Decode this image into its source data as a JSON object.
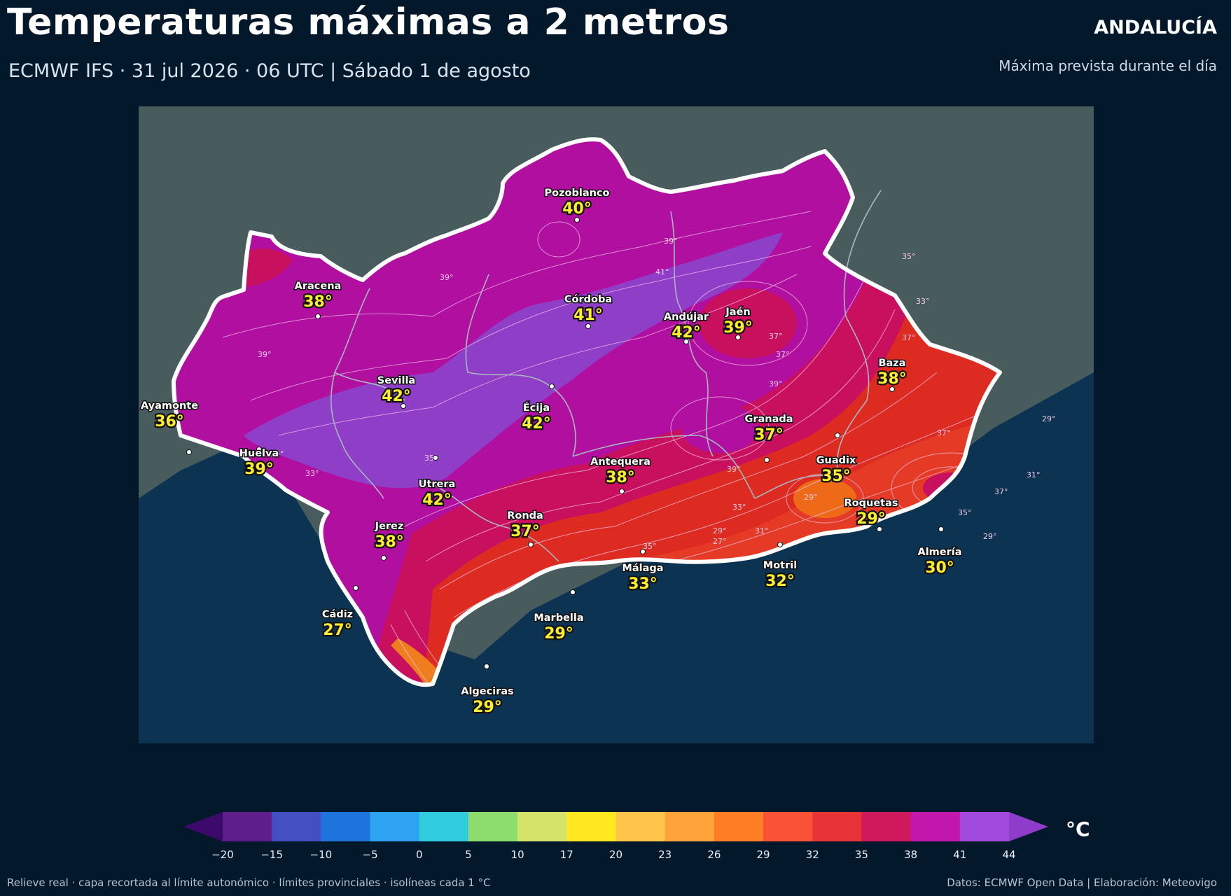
{
  "header": {
    "title": "Temperaturas máximas a 2 metros",
    "subtitle": "ECMWF IFS · 31 jul 2026 · 06 UTC  |  Sábado 1 de agosto",
    "region": "ANDALUCÍA",
    "region_sub": "Máxima prevista durante el día"
  },
  "map": {
    "land_color": "#485c5e",
    "sea_color": "#0d3352",
    "cities": [
      {
        "name": "Pozoblanco",
        "temp": "40°",
        "color": "#b50fa2"
      },
      {
        "name": "Aracena",
        "temp": "38°",
        "color": "#c8105f"
      },
      {
        "name": "Córdoba",
        "temp": "41°",
        "color": "#a817ad"
      },
      {
        "name": "Andújar",
        "temp": "42°",
        "color": "#8f3ec8"
      },
      {
        "name": "Jaén",
        "temp": "39°",
        "color": "#b10fa0"
      },
      {
        "name": "Baza",
        "temp": "38°",
        "color": "#c8105f"
      },
      {
        "name": "Sevilla",
        "temp": "42°",
        "color": "#8f3ec8"
      },
      {
        "name": "Écija",
        "temp": "42°",
        "color": "#8f3ec8"
      },
      {
        "name": "Ayamonte",
        "temp": "36°",
        "color": "#c8105f"
      },
      {
        "name": "Granada",
        "temp": "37°",
        "color": "#c8105f"
      },
      {
        "name": "Huelva",
        "temp": "39°",
        "color": "#b10fa0"
      },
      {
        "name": "Antequera",
        "temp": "38°",
        "color": "#c8105f"
      },
      {
        "name": "Guadix",
        "temp": "35°",
        "color": "#dd2b22"
      },
      {
        "name": "Utrera",
        "temp": "42°",
        "color": "#8f3ec8"
      },
      {
        "name": "Roquetas",
        "temp": "29°",
        "color": "#ef6a18"
      },
      {
        "name": "Ronda",
        "temp": "37°",
        "color": "#c8105f"
      },
      {
        "name": "Jerez",
        "temp": "38°",
        "color": "#c8105f"
      },
      {
        "name": "Almería",
        "temp": "30°",
        "color": "#ef6a18"
      },
      {
        "name": "Málaga",
        "temp": "33°",
        "color": "#e53a25"
      },
      {
        "name": "Motril",
        "temp": "32°",
        "color": "#e53a25"
      },
      {
        "name": "Cádiz",
        "temp": "27°",
        "color": "#ef7e1e"
      },
      {
        "name": "Marbella",
        "temp": "29°",
        "color": "#ef6a18"
      },
      {
        "name": "Algeciras",
        "temp": "29°",
        "color": "#ef6a18"
      }
    ],
    "isoline_labels": [
      "39°",
      "39°",
      "41°",
      "39°",
      "35°",
      "33°",
      "37°",
      "37°",
      "39°",
      "37°",
      "39°",
      "33°",
      "35°",
      "37°",
      "39°",
      "33°",
      "35°",
      "29°",
      "31°",
      "29°",
      "27°",
      "29°",
      "31°",
      "35°",
      "37°",
      "29°"
    ]
  },
  "colorbar": {
    "unit": "°C",
    "ticks": [
      "−20",
      "−15",
      "−10",
      "−5",
      "0",
      "5",
      "10",
      "17",
      "20",
      "23",
      "26",
      "29",
      "32",
      "35",
      "38",
      "41",
      "44"
    ],
    "under_color": "#3c0a6b",
    "over_color": "#8e3cc9",
    "colors": [
      "#5e1f8a",
      "#4450c2",
      "#1e73dc",
      "#2ea3f2",
      "#31cbe0",
      "#8cdd6d",
      "#d6e36a",
      "#ffe81f",
      "#ffc54a",
      "#ffa33a",
      "#ff7d25",
      "#fa5236",
      "#e93437",
      "#d0195d",
      "#c117ad",
      "#a24ade"
    ]
  },
  "footer": {
    "left": "Relieve real · capa recortada al límite autonómico · límites provinciales · isolíneas cada 1 °C",
    "right": "Datos: ECMWF Open Data | Elaboración: Meteovigo"
  }
}
